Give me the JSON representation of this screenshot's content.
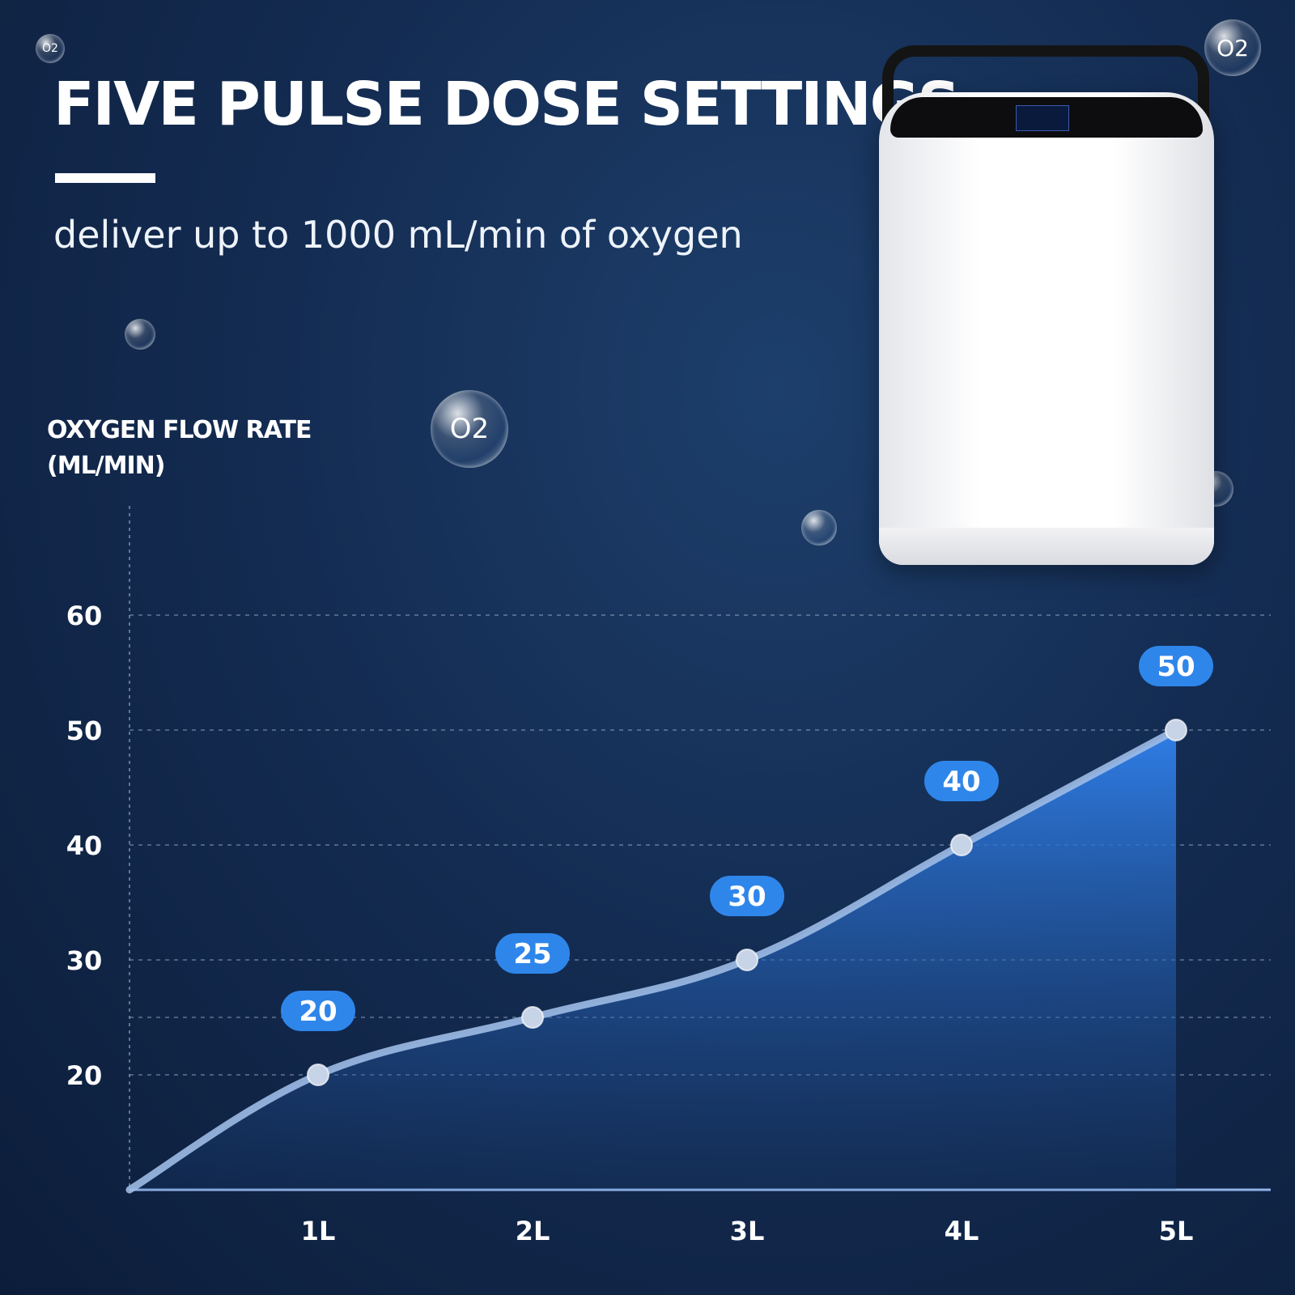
{
  "header": {
    "title": "FIVE PULSE DOSE SETTINGS",
    "subtitle": "deliver up to 1000 mL/min of oxygen"
  },
  "decor": {
    "bubble_label": "O2",
    "bubble_color": "#ffffff",
    "device_icon": "oxygen-concentrator"
  },
  "chart_data": {
    "type": "area",
    "ylabel_line1": "OXYGEN FLOW RATE",
    "ylabel_line2": "(ML/MIN)",
    "categories": [
      "1L",
      "2L",
      "3L",
      "4L",
      "5L"
    ],
    "values": [
      20,
      25,
      30,
      40,
      50
    ],
    "data_labels": [
      "20",
      "25",
      "30",
      "40",
      "50"
    ],
    "yticks": [
      "20",
      "30",
      "40",
      "50",
      "60"
    ],
    "ytick_values": [
      20,
      30,
      40,
      50,
      60
    ],
    "extra_gridline": 25,
    "ylim": [
      10,
      60
    ],
    "grid": true,
    "colors": {
      "area_top": "#2f7de6",
      "area_bottom": "#1d4a8c",
      "line": "#9dbbe6",
      "point": "#c7d3e6",
      "label_bg": "#2f86ea",
      "axis": "#8fb2e6"
    }
  }
}
